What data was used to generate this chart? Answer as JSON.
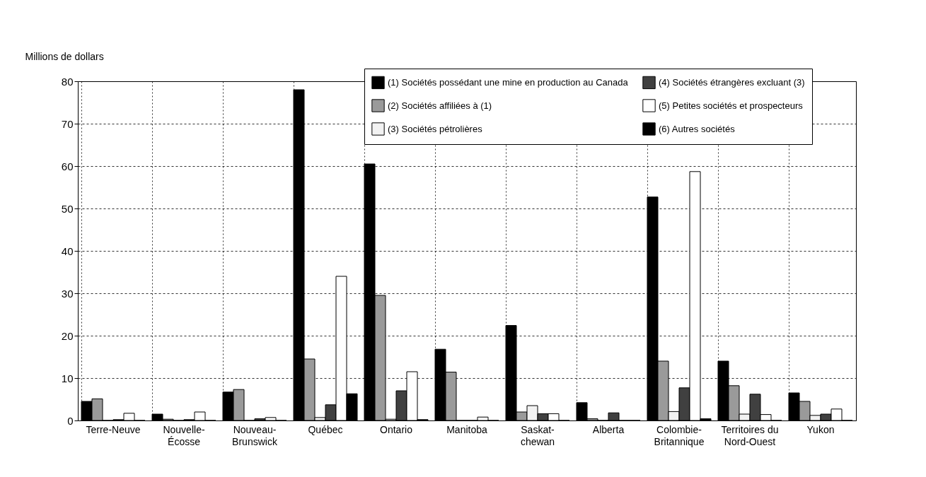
{
  "chart_data": {
    "type": "bar",
    "ylabel": "Millions de dollars",
    "categories": [
      "Terre-Neuve",
      "Nouvelle-\nÉcosse",
      "Nouveau-\nBrunswick",
      "Québec",
      "Ontario",
      "Manitoba",
      "Saskat-\nchewan",
      "Alberta",
      "Colombie-\nBritannique",
      "Territoires du\nNord-Ouest",
      "Yukon"
    ],
    "series": [
      {
        "name": "(1) Sociétés possédant une mine en production au Canada",
        "color": "#000000",
        "values": [
          4.5,
          1.5,
          6.7,
          78,
          60.5,
          16.8,
          22.4,
          4.2,
          52.7,
          14,
          6.5
        ]
      },
      {
        "name": "(2) Sociétés affiliées à (1)",
        "color": "#9a9a9a",
        "values": [
          5.1,
          0.3,
          7.3,
          14.5,
          29.5,
          11.4,
          2,
          0.4,
          14,
          8.2,
          4.5
        ]
      },
      {
        "name": "(3) Sociétés pétrolières",
        "color": "#f2f2f2",
        "values": [
          0,
          0,
          0,
          0.7,
          0.3,
          0,
          3.5,
          0,
          2.1,
          1.5,
          1.2
        ]
      },
      {
        "name": "(4) Sociétés étrangères excluant (3)",
        "color": "#404040",
        "values": [
          0.2,
          0.2,
          0.4,
          3.7,
          7,
          0,
          1.6,
          1.8,
          7.7,
          6.2,
          1.5
        ]
      },
      {
        "name": "(5) Petites sociétés et prospecteurs",
        "color": "#ffffff",
        "values": [
          1.7,
          2,
          0.7,
          34,
          11.5,
          0.8,
          1.6,
          0,
          58.7,
          1.4,
          2.7
        ]
      },
      {
        "name": "(6) Autres sociétés",
        "color": "#000000",
        "values": [
          0,
          0,
          0,
          6.3,
          0.2,
          0,
          0,
          0,
          0.4,
          0,
          0
        ]
      }
    ],
    "ylim": [
      0,
      80
    ],
    "yticks": [
      0,
      10,
      20,
      30,
      40,
      50,
      60,
      70,
      80
    ],
    "grid": true,
    "legend": "top right"
  }
}
